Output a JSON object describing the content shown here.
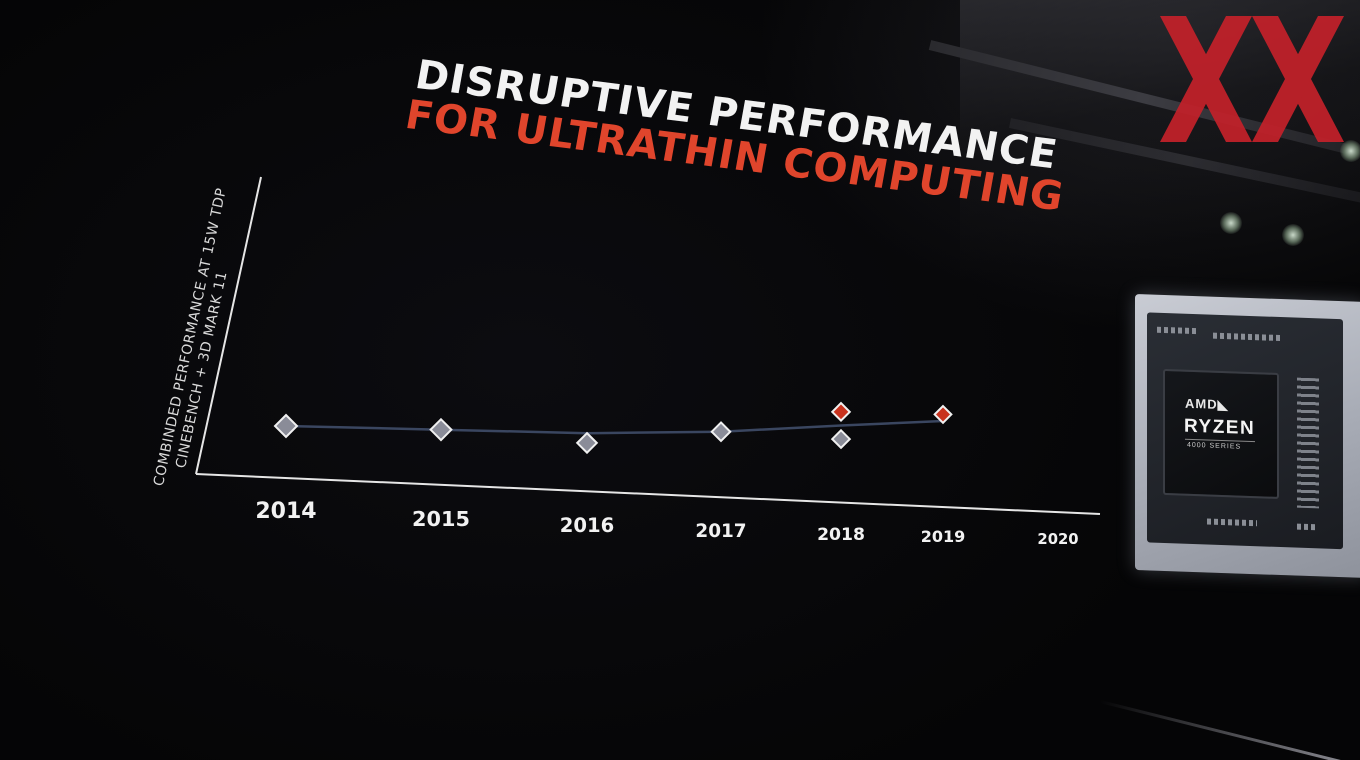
{
  "slide": {
    "title_line1": "DISRUPTIVE PERFORMANCE",
    "title_line2": "FOR ULTRATHIN COMPUTING"
  },
  "colors": {
    "title_white": "#f2f2f2",
    "title_red": "#e0452c",
    "marker_gray": "#8a8c98",
    "marker_red": "#c8321e",
    "trend_line": "#3a4660",
    "axis": "#e6e6e6",
    "logo_red": "#c4212a"
  },
  "chart_data": {
    "type": "scatter",
    "title": "DISRUPTIVE PERFORMANCE FOR ULTRATHIN COMPUTING",
    "xlabel": "",
    "ylabel_lines": [
      "COMBINDED PERFORMANCE AT 15W TDP",
      "CINEBENCH + 3D MARK 11"
    ],
    "categories": [
      "2014",
      "2015",
      "2016",
      "2017",
      "2018",
      "2019",
      "2020"
    ],
    "series": [
      {
        "color": "gray",
        "points": [
          {
            "x": "2014",
            "y": 1.0
          },
          {
            "x": "2015",
            "y": 1.1
          },
          {
            "x": "2016",
            "y": 1.0
          },
          {
            "x": "2017",
            "y": 1.4
          },
          {
            "x": "2018",
            "y": 1.4
          }
        ]
      },
      {
        "color": "red",
        "points": [
          {
            "x": "2018",
            "y": 2.0
          },
          {
            "x": "2019",
            "y": 2.1
          }
        ]
      }
    ],
    "trend_line": [
      {
        "x": "2014",
        "y": 1.0
      },
      {
        "x": "2015",
        "y": 1.1
      },
      {
        "x": "2016",
        "y": 1.2
      },
      {
        "x": "2017",
        "y": 1.4
      },
      {
        "x": "2018",
        "y": 1.7
      },
      {
        "x": "2019",
        "y": 1.95
      }
    ],
    "ylim": [
      0,
      4
    ],
    "grid": false,
    "legend": "none"
  },
  "product": {
    "brand": "AMD◣",
    "name": "RYZEN",
    "series": "4000 SERIES"
  },
  "watermark": {
    "icon": "double-x-logo"
  }
}
